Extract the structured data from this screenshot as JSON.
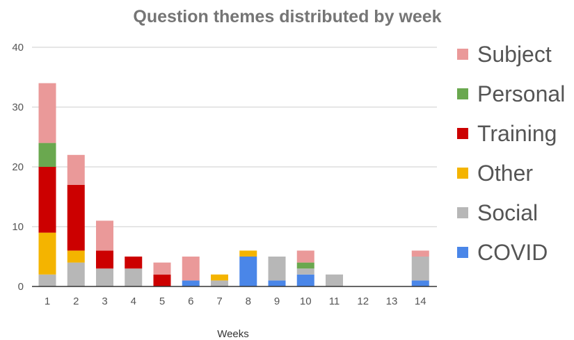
{
  "chart_data": {
    "type": "bar",
    "stacked": true,
    "title": "Question themes distributed by week",
    "xlabel": "Weeks",
    "ylabel": "",
    "ylim": [
      0,
      40
    ],
    "yticks": [
      0,
      10,
      20,
      30,
      40
    ],
    "grid": true,
    "legend_position": "right",
    "categories": [
      "1",
      "2",
      "3",
      "4",
      "5",
      "6",
      "7",
      "8",
      "9",
      "10",
      "11",
      "12",
      "13",
      "14"
    ],
    "series": [
      {
        "name": "COVID",
        "color": "#4a86e8",
        "values": [
          0,
          0,
          0,
          0,
          0,
          1,
          0,
          5,
          1,
          2,
          0,
          0,
          0,
          1
        ]
      },
      {
        "name": "Social",
        "color": "#b7b7b7",
        "values": [
          2,
          4,
          3,
          3,
          0,
          0,
          1,
          0,
          4,
          1,
          2,
          0,
          0,
          4
        ]
      },
      {
        "name": "Other",
        "color": "#f4b400",
        "values": [
          7,
          2,
          0,
          0,
          0,
          0,
          1,
          1,
          0,
          0,
          0,
          0,
          0,
          0
        ]
      },
      {
        "name": "Training",
        "color": "#cc0000",
        "values": [
          11,
          11,
          3,
          2,
          2,
          0,
          0,
          0,
          0,
          0,
          0,
          0,
          0,
          0
        ]
      },
      {
        "name": "Personal",
        "color": "#6aa84f",
        "values": [
          4,
          0,
          0,
          0,
          0,
          0,
          0,
          0,
          0,
          1,
          0,
          0,
          0,
          0
        ]
      },
      {
        "name": "Subject",
        "color": "#ea9999",
        "values": [
          10,
          5,
          5,
          0,
          2,
          4,
          0,
          0,
          0,
          2,
          0,
          0,
          0,
          1
        ]
      }
    ],
    "legend_order": [
      "Subject",
      "Personal",
      "Training",
      "Other",
      "Social",
      "COVID"
    ]
  }
}
